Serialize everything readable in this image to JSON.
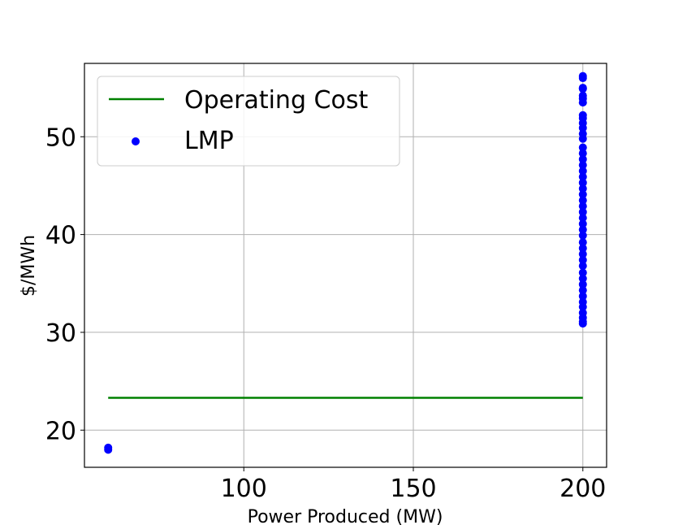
{
  "chart_data": {
    "type": "scatter",
    "xlabel": "Power Produced (MW)",
    "ylabel": "$/MWh",
    "xlim": [
      53,
      207
    ],
    "ylim": [
      16.2,
      57.5
    ],
    "grid": true,
    "legend_position": "top-left",
    "x_ticks": [
      {
        "value": 100,
        "label": "100"
      },
      {
        "value": 150,
        "label": "150"
      },
      {
        "value": 200,
        "label": "200"
      }
    ],
    "y_ticks": [
      {
        "value": 20,
        "label": "20"
      },
      {
        "value": 30,
        "label": "30"
      },
      {
        "value": 40,
        "label": "40"
      },
      {
        "value": 50,
        "label": "50"
      }
    ],
    "series": [
      {
        "name": "Operating Cost",
        "kind": "line",
        "color": "#008000",
        "x": [
          60,
          200
        ],
        "y": [
          23.3,
          23.3
        ]
      },
      {
        "name": "LMP",
        "kind": "scatter",
        "color": "#0000ff",
        "x": [
          60,
          60,
          200,
          200,
          200,
          200,
          200,
          200,
          200,
          200,
          200,
          200,
          200,
          200,
          200,
          200,
          200,
          200,
          200,
          200,
          200,
          200,
          200,
          200,
          200,
          200,
          200,
          200,
          200,
          200,
          200,
          200,
          200,
          200,
          200,
          200,
          200,
          200,
          200,
          200,
          200,
          200,
          200,
          200,
          200,
          200,
          200
        ],
        "y": [
          18.0,
          18.2,
          30.9,
          31.1,
          31.5,
          32.0,
          32.6,
          33.1,
          33.7,
          34.3,
          34.9,
          35.5,
          36.1,
          36.8,
          37.4,
          38.0,
          38.6,
          39.2,
          39.9,
          40.5,
          41.1,
          41.7,
          42.3,
          42.9,
          43.5,
          44.1,
          44.7,
          45.3,
          45.9,
          46.5,
          47.1,
          47.7,
          48.3,
          48.9,
          49.8,
          50.3,
          50.9,
          51.4,
          51.9,
          52.2,
          53.5,
          53.9,
          54.2,
          54.9,
          55.0,
          56.0,
          56.2
        ]
      }
    ]
  }
}
